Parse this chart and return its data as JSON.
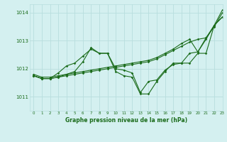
{
  "title": "Graphe pression niveau de la mer (hPa)",
  "bg_color": "#d4f0f0",
  "grid_color": "#b8dede",
  "line_color": "#1a6b1a",
  "xlim": [
    -0.5,
    23
  ],
  "ylim": [
    1010.5,
    1014.3
  ],
  "yticks": [
    1011,
    1012,
    1013,
    1014
  ],
  "xticks": [
    0,
    1,
    2,
    3,
    4,
    5,
    6,
    7,
    8,
    9,
    10,
    11,
    12,
    13,
    14,
    15,
    16,
    17,
    18,
    19,
    20,
    21,
    22,
    23
  ],
  "series": [
    {
      "x": [
        0,
        1,
        2,
        3,
        4,
        5,
        6,
        7,
        8,
        9,
        10,
        11,
        12,
        13,
        14,
        15,
        16,
        17,
        18,
        19,
        20,
        21,
        22,
        23
      ],
      "y": [
        1011.8,
        1011.7,
        1011.7,
        1011.75,
        1011.8,
        1011.85,
        1011.9,
        1011.95,
        1012.0,
        1012.05,
        1012.1,
        1012.15,
        1012.2,
        1012.25,
        1012.3,
        1012.4,
        1012.55,
        1012.7,
        1012.9,
        1013.05,
        1012.6,
        1013.1,
        1013.55,
        1014.1
      ]
    },
    {
      "x": [
        0,
        1,
        2,
        3,
        4,
        5,
        6,
        7,
        8,
        9,
        10,
        11,
        12,
        13,
        14,
        15,
        16,
        17,
        18,
        19,
        20,
        21,
        22,
        23
      ],
      "y": [
        1011.75,
        1011.65,
        1011.65,
        1011.7,
        1011.75,
        1011.8,
        1011.85,
        1011.9,
        1011.95,
        1012.0,
        1012.05,
        1012.1,
        1012.15,
        1012.2,
        1012.25,
        1012.35,
        1012.5,
        1012.65,
        1012.8,
        1012.95,
        1013.05,
        1013.1,
        1013.5,
        1014.0
      ]
    },
    {
      "x": [
        0,
        1,
        2,
        3,
        4,
        5,
        6,
        7,
        8,
        9,
        10,
        11,
        12,
        13,
        14,
        15,
        16,
        17,
        18,
        19,
        20,
        21,
        22,
        23
      ],
      "y": [
        1011.75,
        1011.65,
        1011.65,
        1011.85,
        1012.1,
        1012.2,
        1012.45,
        1012.7,
        1012.55,
        1012.55,
        1012.0,
        1011.95,
        1011.85,
        1011.15,
        1011.55,
        1011.6,
        1011.95,
        1012.15,
        1012.2,
        1012.55,
        1012.6,
        1013.05,
        1013.55,
        1013.85
      ]
    },
    {
      "x": [
        0,
        1,
        2,
        3,
        4,
        5,
        6,
        7,
        8,
        9,
        10,
        11,
        12,
        13,
        14,
        15,
        16,
        17,
        18,
        19,
        20,
        21,
        22,
        23
      ],
      "y": [
        1011.75,
        1011.65,
        1011.65,
        1011.7,
        1011.8,
        1011.9,
        1012.25,
        1012.75,
        1012.55,
        1012.55,
        1011.9,
        1011.75,
        1011.7,
        1011.1,
        1011.1,
        1011.55,
        1011.9,
        1012.2,
        1012.2,
        1012.2,
        1012.55,
        1012.55,
        1013.55,
        1013.85
      ]
    }
  ]
}
